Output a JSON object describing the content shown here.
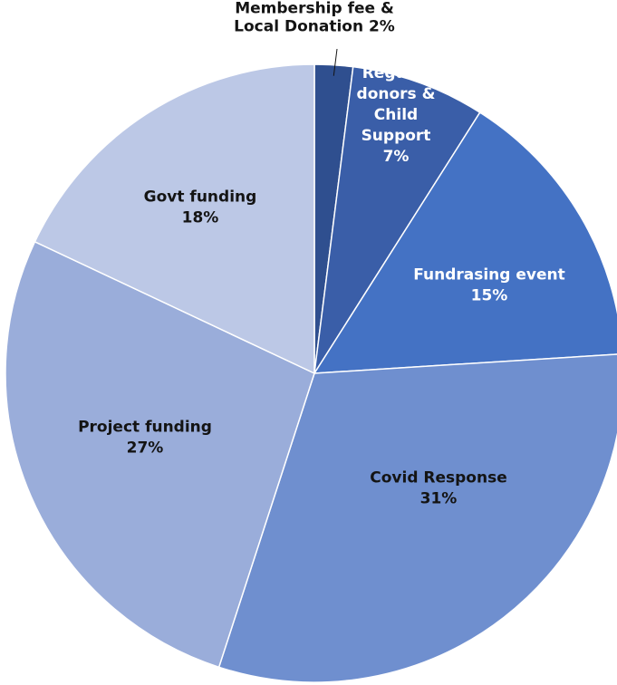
{
  "chart_data": {
    "type": "pie",
    "start_angle_deg": 0,
    "direction": "clockwise",
    "slices": [
      {
        "lines": [
          "Membership  fee &",
          "Local Donation  2%"
        ],
        "value": 2,
        "color": "#2f4f8f",
        "label_color": "#141414"
      },
      {
        "lines": [
          "Regular",
          "donors &",
          "Child",
          "Support",
          "7%"
        ],
        "value": 7,
        "color": "#3a5ea8",
        "label_color": "#ffffff"
      },
      {
        "lines": [
          "Fundrasing event",
          "15%"
        ],
        "value": 15,
        "color": "#4472c4",
        "label_color": "#ffffff"
      },
      {
        "lines": [
          "Covid Response",
          "31%"
        ],
        "value": 31,
        "color": "#6f8fcf",
        "label_color": "#141414"
      },
      {
        "lines": [
          "Project funding",
          "27%"
        ],
        "value": 27,
        "color": "#9aadda",
        "label_color": "#141414"
      },
      {
        "lines": [
          "Govt funding",
          "18%"
        ],
        "value": 18,
        "color": "#bcc8e6",
        "label_color": "#141414"
      }
    ]
  }
}
